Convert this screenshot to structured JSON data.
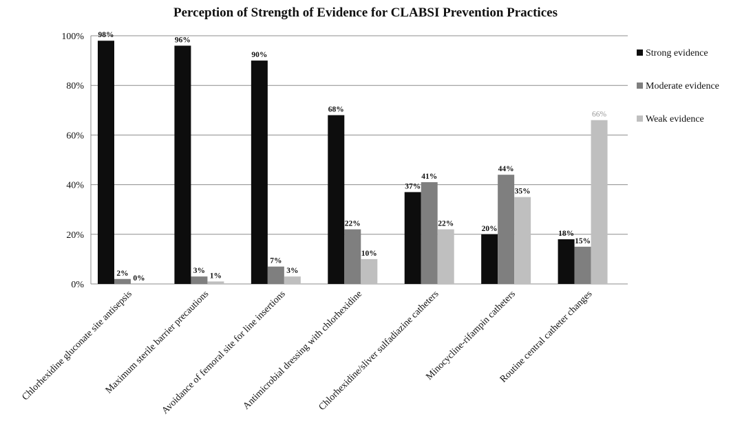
{
  "chart_data": {
    "type": "bar",
    "title": "Perception of Strength of Evidence for CLABSI Prevention Practices",
    "xlabel": "",
    "ylabel": "",
    "ylim": [
      0,
      100
    ],
    "yticks": [
      0,
      20,
      40,
      60,
      80,
      100
    ],
    "ytick_labels": [
      "0%",
      "20%",
      "40%",
      "60%",
      "80%",
      "100%"
    ],
    "grid": true,
    "legend_position": "right",
    "categories": [
      "Chlorhexidine gluconate site antisepsis",
      "Maximum sterile barrier precautions",
      "Avoidance of femoral site for line insertions",
      "Antimicrobial dressing with chlorhexidine",
      "Chlorhexidine/sliver sulfadiazine catheters",
      "Minocycline-rifampin catheters",
      "Routine central catheter changes"
    ],
    "series": [
      {
        "name": "Strong evidence",
        "color": "#0d0d0d",
        "values": [
          98,
          96,
          90,
          68,
          37,
          20,
          18
        ],
        "labels": [
          "98%",
          "96%",
          "90%",
          "68%",
          "37%",
          "20%",
          "18%"
        ]
      },
      {
        "name": "Moderate evidence",
        "color": "#7f7f7f",
        "values": [
          2,
          3,
          7,
          22,
          41,
          44,
          15
        ],
        "labels": [
          "2%",
          "3%",
          "7%",
          "22%",
          "41%",
          "44%",
          "15%"
        ]
      },
      {
        "name": "Weak evidence",
        "color": "#bfbfbf",
        "values": [
          0,
          1,
          3,
          10,
          22,
          35,
          66
        ],
        "labels": [
          "0%",
          "1%",
          "3%",
          "10%",
          "22%",
          "35%",
          "66%"
        ]
      }
    ]
  }
}
